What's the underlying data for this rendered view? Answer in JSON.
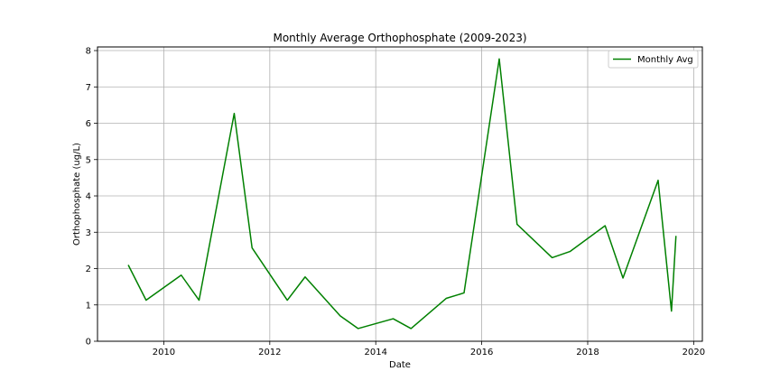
{
  "chart_data": {
    "type": "line",
    "title": "Monthly Average Orthophosphate (2009-2023)",
    "xlabel": "Date",
    "ylabel": "Orthophosphate (ug/L)",
    "xlim": [
      "2008-10-01",
      "2020-03-01"
    ],
    "ylim": [
      0,
      8.1
    ],
    "x_ticks": [
      "2010",
      "2012",
      "2014",
      "2016",
      "2018",
      "2020"
    ],
    "y_ticks": [
      "0",
      "1",
      "2",
      "3",
      "4",
      "5",
      "6",
      "7",
      "8"
    ],
    "grid": true,
    "legend_position": "top-right",
    "series": [
      {
        "name": "Monthly Avg",
        "color": "#008000",
        "x": [
          "2009-05-01",
          "2009-09-01",
          "2010-05-01",
          "2010-09-01",
          "2011-05-01",
          "2011-09-01",
          "2012-05-01",
          "2012-09-01",
          "2013-05-01",
          "2013-09-01",
          "2014-05-01",
          "2014-09-01",
          "2015-05-01",
          "2015-09-01",
          "2016-05-01",
          "2016-09-01",
          "2017-05-01",
          "2017-09-01",
          "2018-05-01",
          "2018-09-01",
          "2019-05-01",
          "2019-08-01",
          "2019-09-01"
        ],
        "y": [
          2.1,
          1.13,
          1.82,
          1.13,
          6.27,
          2.57,
          1.13,
          1.77,
          0.7,
          0.35,
          0.62,
          0.35,
          1.18,
          1.33,
          7.77,
          3.22,
          2.3,
          2.47,
          3.18,
          1.74,
          4.43,
          0.83,
          2.9
        ]
      }
    ]
  }
}
